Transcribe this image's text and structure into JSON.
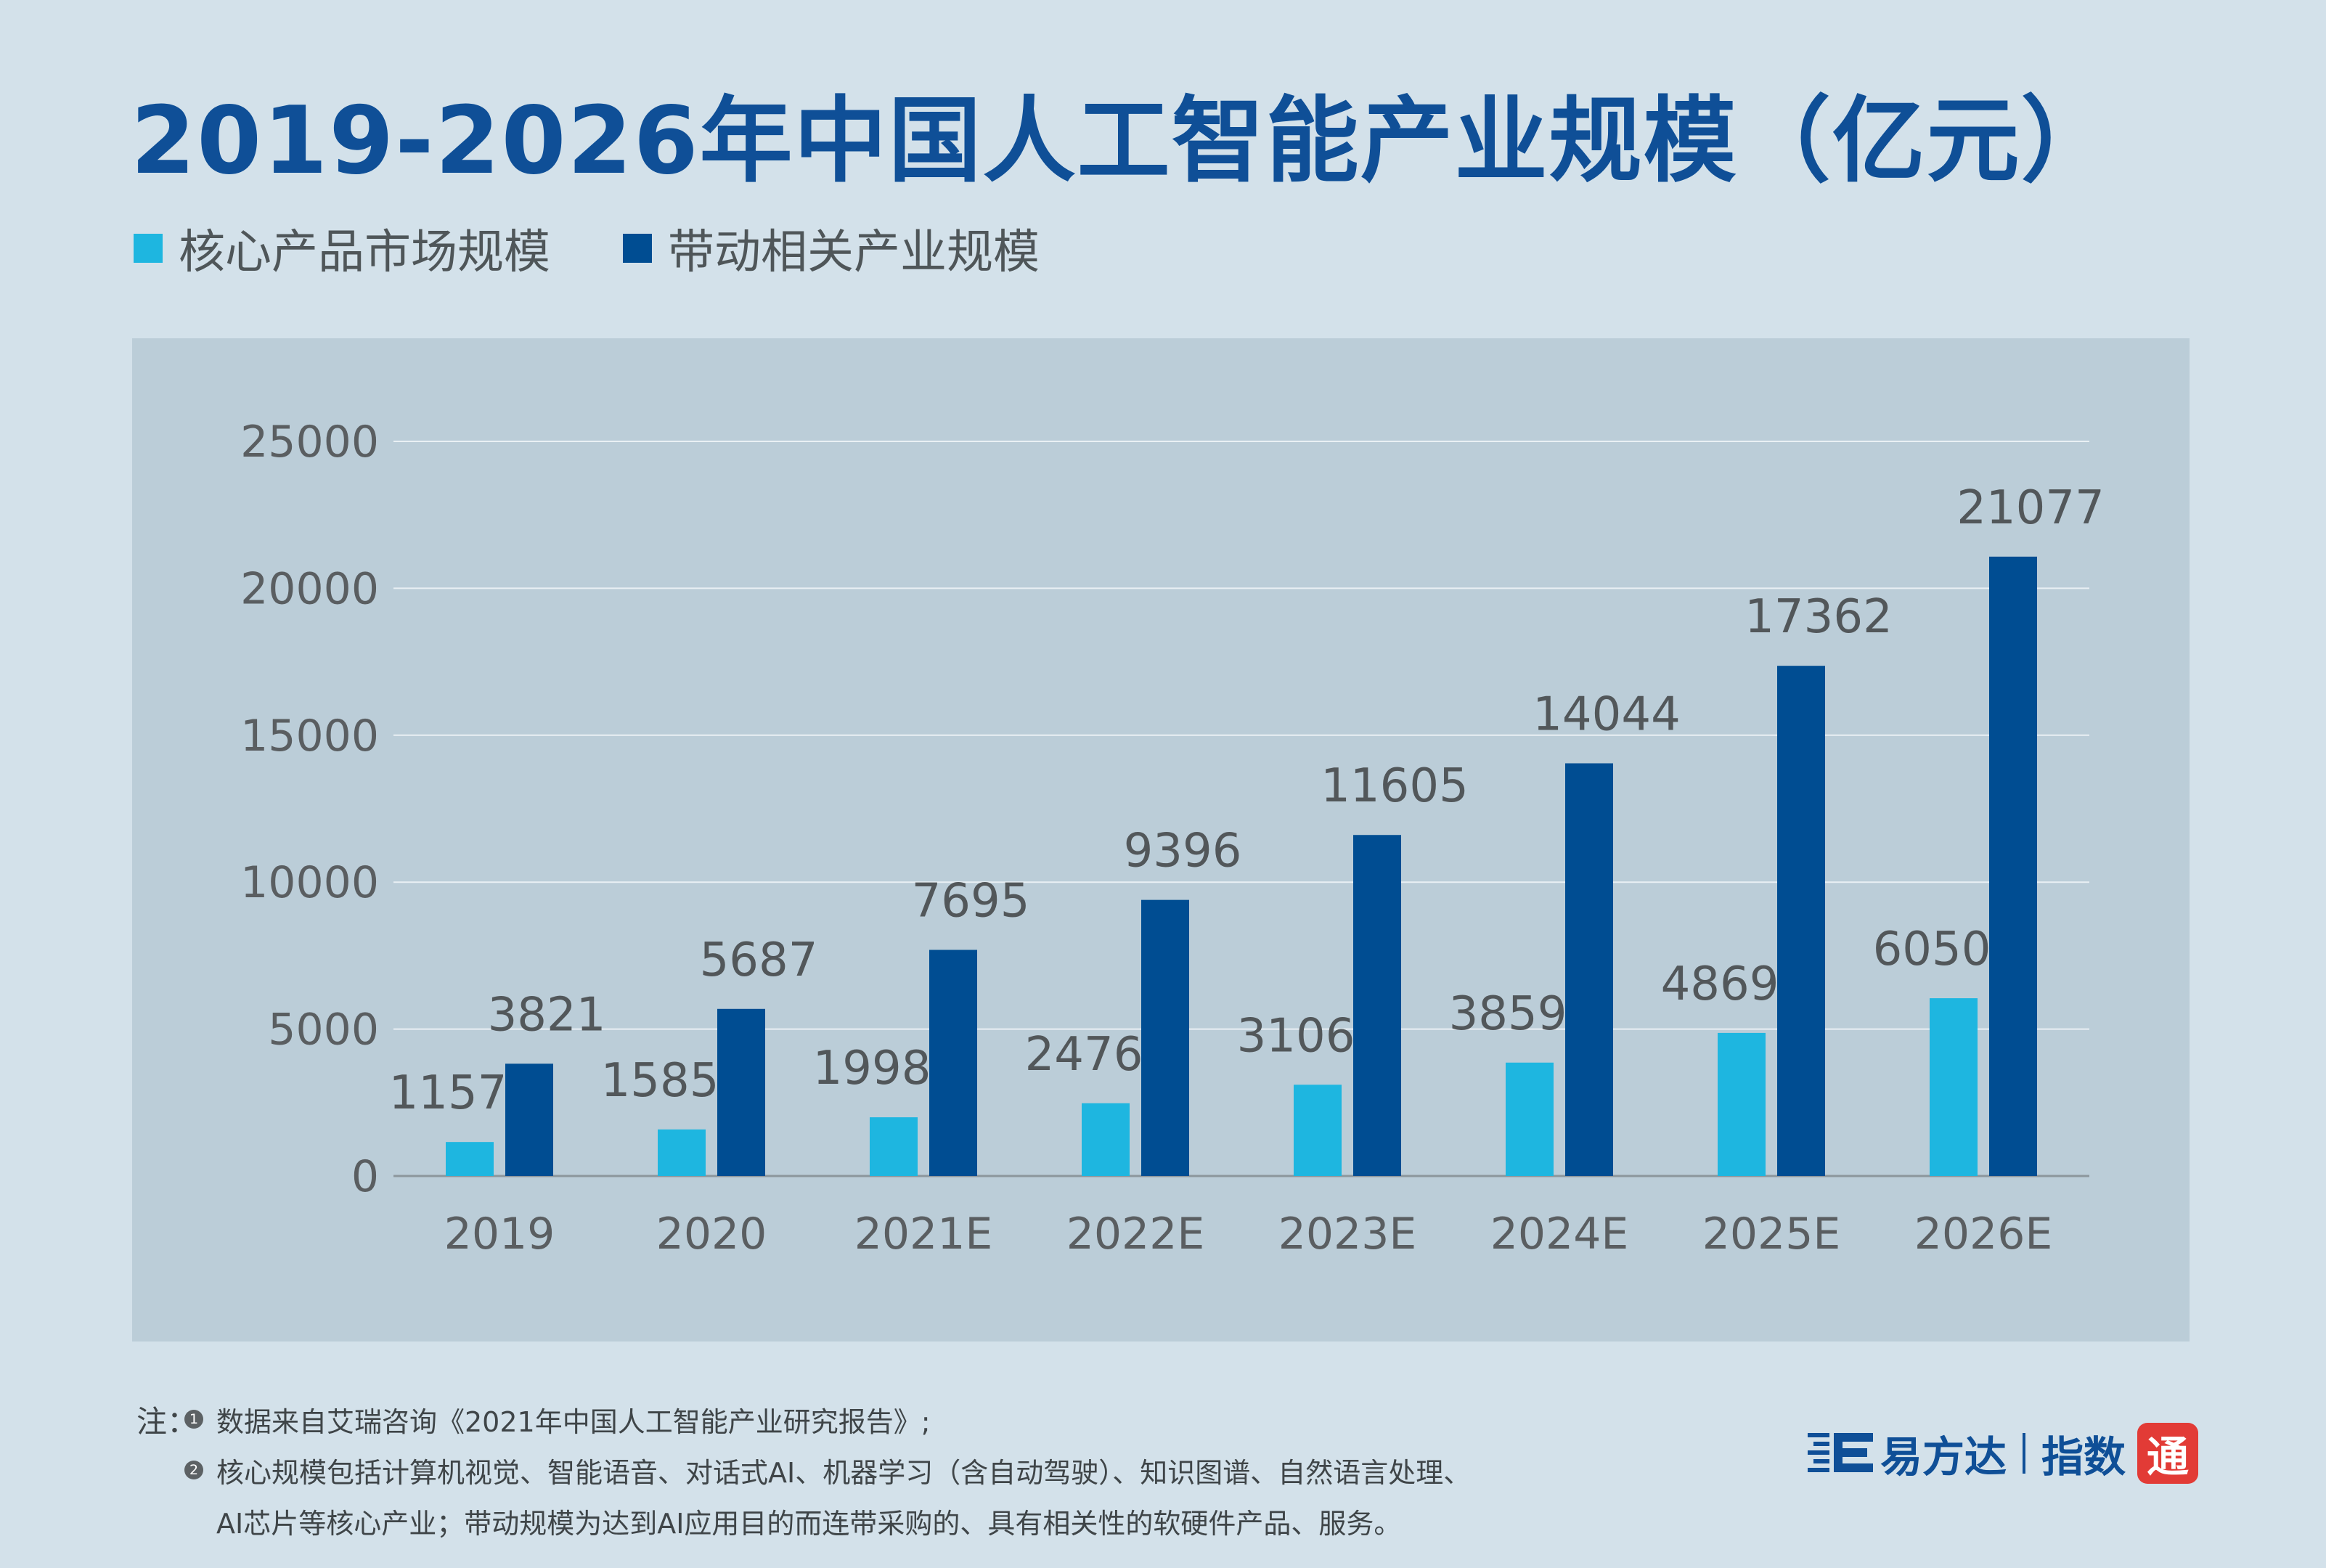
{
  "title": "2019-2026年中国人工智能产业规模（亿元）",
  "legend": [
    {
      "label": "核心产品市场规模",
      "color": "#1eb6e0"
    },
    {
      "label": "带动相关产业规模",
      "color": "#004d92"
    }
  ],
  "chart_data": {
    "type": "bar",
    "title": "2019-2026年中国人工智能产业规模（亿元）",
    "categories": [
      "2019",
      "2020",
      "2021E",
      "2022E",
      "2023E",
      "2024E",
      "2025E",
      "2026E"
    ],
    "series": [
      {
        "name": "核心产品市场规模",
        "color": "#1eb6e0",
        "values": [
          1157,
          1585,
          1998,
          2476,
          3106,
          3859,
          4869,
          6050
        ]
      },
      {
        "name": "带动相关产业规模",
        "color": "#004d92",
        "values": [
          3821,
          5687,
          7695,
          9396,
          11605,
          14044,
          17362,
          21077
        ]
      }
    ],
    "yticks": [
      "0",
      "5000",
      "10000",
      "15000",
      "20000",
      "25000"
    ],
    "ylim": [
      0,
      25000
    ],
    "grid": true,
    "legend_position": "top-left",
    "xlabel": "",
    "ylabel": ""
  },
  "notes": {
    "prefix": "注：",
    "items": [
      {
        "num": "1",
        "text": "数据来自艾瑞咨询《2021年中国人工智能产业研究报告》;"
      },
      {
        "num": "2",
        "text": "核心规模包括计算机视觉、智能语音、对话式AI、机器学习（含自动驾驶）、知识图谱、自然语言处理、"
      }
    ],
    "continuation": "AI芯片等核心产业；带动规模为达到AI应用目的而连带采购的、具有相关性的软硬件产品、服务。"
  },
  "brand": {
    "name": "易方达",
    "index": "指数",
    "seal": "通",
    "color": "#0f4f97",
    "seal_color": "#e23b36"
  }
}
